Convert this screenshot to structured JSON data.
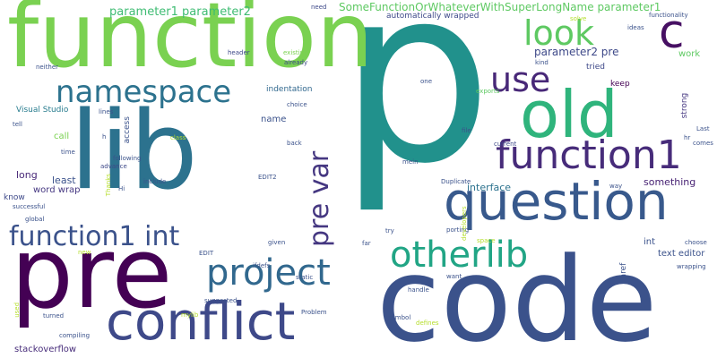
{
  "words": [
    {
      "text": "p",
      "weight": 1.0,
      "color": "#21918c",
      "orientation": "horizontal"
    },
    {
      "text": "code",
      "weight": 0.72,
      "color": "#3b528b",
      "orientation": "horizontal"
    },
    {
      "text": "function",
      "weight": 0.7,
      "color": "#7ad151",
      "orientation": "horizontal"
    },
    {
      "text": "lib",
      "weight": 0.68,
      "color": "#2c728e",
      "orientation": "horizontal"
    },
    {
      "text": "pre",
      "weight": 0.62,
      "color": "#440154",
      "orientation": "horizontal"
    },
    {
      "text": "old",
      "weight": 0.4,
      "color": "#2fb47c",
      "orientation": "horizontal"
    },
    {
      "text": "conflict",
      "weight": 0.32,
      "color": "#3e4989",
      "orientation": "horizontal"
    },
    {
      "text": "question",
      "weight": 0.32,
      "color": "#38598c",
      "orientation": "horizontal"
    },
    {
      "text": "c",
      "weight": 0.3,
      "color": "#471063",
      "orientation": "horizontal"
    },
    {
      "text": "function1",
      "weight": 0.24,
      "color": "#472c7a",
      "orientation": "horizontal"
    },
    {
      "text": "function1 int",
      "weight": 0.16,
      "color": "#3b528b",
      "orientation": "horizontal"
    },
    {
      "text": "project",
      "weight": 0.22,
      "color": "#31688e",
      "orientation": "horizontal"
    },
    {
      "text": "otherlib",
      "weight": 0.22,
      "color": "#21a585",
      "orientation": "horizontal"
    },
    {
      "text": "namespace",
      "weight": 0.18,
      "color": "#2c728e",
      "orientation": "horizontal"
    },
    {
      "text": "pre var",
      "weight": 0.16,
      "color": "#453781",
      "orientation": "vertical"
    },
    {
      "text": "use",
      "weight": 0.2,
      "color": "#482878",
      "orientation": "horizontal"
    },
    {
      "text": "look",
      "weight": 0.2,
      "color": "#5ec962",
      "orientation": "horizontal"
    },
    {
      "text": "parameter1 parameter2",
      "weight": 0.08,
      "color": "#3fbc73",
      "orientation": "horizontal"
    },
    {
      "text": "SomeFunctionOrWhateverWithSuperLongName parameter1",
      "weight": 0.08,
      "color": "#5ec962",
      "orientation": "horizontal"
    },
    {
      "text": "parameter2 pre",
      "weight": 0.08,
      "color": "#3e4989",
      "orientation": "horizontal"
    },
    {
      "text": "stackoverflow",
      "weight": 0.07,
      "color": "#472c7a",
      "orientation": "horizontal"
    },
    {
      "text": "something",
      "weight": 0.07,
      "color": "#482374",
      "orientation": "horizontal"
    },
    {
      "text": "long",
      "weight": 0.07,
      "color": "#482878",
      "orientation": "horizontal"
    },
    {
      "text": "least",
      "weight": 0.07,
      "color": "#3b528b",
      "orientation": "horizontal"
    },
    {
      "text": "interface",
      "weight": 0.06,
      "color": "#2c728e",
      "orientation": "horizontal"
    },
    {
      "text": "text editor",
      "weight": 0.06,
      "color": "#3b528b",
      "orientation": "horizontal"
    },
    {
      "text": "word wrap",
      "weight": 0.06,
      "color": "#453781",
      "orientation": "horizontal"
    },
    {
      "text": "automatically wrapped",
      "weight": 0.05,
      "color": "#3e4989",
      "orientation": "horizontal"
    },
    {
      "text": "indentation",
      "weight": 0.05,
      "color": "#31688e",
      "orientation": "horizontal"
    },
    {
      "text": "Visual Studio",
      "weight": 0.05,
      "color": "#287c8e",
      "orientation": "horizontal"
    },
    {
      "text": "call",
      "weight": 0.06,
      "color": "#7ad151",
      "orientation": "horizontal"
    },
    {
      "text": "name",
      "weight": 0.06,
      "color": "#3b528b",
      "orientation": "horizontal"
    },
    {
      "text": "work",
      "weight": 0.06,
      "color": "#5ec962",
      "orientation": "horizontal"
    },
    {
      "text": "tried",
      "weight": 0.06,
      "color": "#3e4989",
      "orientation": "horizontal"
    },
    {
      "text": "keep",
      "weight": 0.05,
      "color": "#440154",
      "orientation": "horizontal"
    },
    {
      "text": "strong",
      "weight": 0.05,
      "color": "#453781",
      "orientation": "vertical"
    },
    {
      "text": "access",
      "weight": 0.05,
      "color": "#3b528b",
      "orientation": "vertical"
    },
    {
      "text": "int",
      "weight": 0.06,
      "color": "#3b528b",
      "orientation": "horizontal"
    },
    {
      "text": "href",
      "weight": 0.05,
      "color": "#3b528b",
      "orientation": "vertical"
    },
    {
      "text": "need",
      "weight": 0.04,
      "color": "#3e4989",
      "orientation": "horizontal"
    },
    {
      "text": "header",
      "weight": 0.04,
      "color": "#3e4989",
      "orientation": "horizontal"
    },
    {
      "text": "already",
      "weight": 0.04,
      "color": "#3e4989",
      "orientation": "horizontal"
    },
    {
      "text": "existing",
      "weight": 0.04,
      "color": "#7ad151",
      "orientation": "horizontal"
    },
    {
      "text": "neither",
      "weight": 0.04,
      "color": "#3b528b",
      "orientation": "horizontal"
    },
    {
      "text": "one",
      "weight": 0.04,
      "color": "#3b528b",
      "orientation": "horizontal"
    },
    {
      "text": "exports",
      "weight": 0.04,
      "color": "#5ec962",
      "orientation": "horizontal"
    },
    {
      "text": "choice",
      "weight": 0.04,
      "color": "#3b528b",
      "orientation": "horizontal"
    },
    {
      "text": "file",
      "weight": 0.04,
      "color": "#3b528b",
      "orientation": "horizontal"
    },
    {
      "text": "current",
      "weight": 0.04,
      "color": "#3e4989",
      "orientation": "horizontal"
    },
    {
      "text": "mein",
      "weight": 0.04,
      "color": "#3b528b",
      "orientation": "horizontal"
    },
    {
      "text": "EDIT2",
      "weight": 0.04,
      "color": "#3b528b",
      "orientation": "horizontal"
    },
    {
      "text": "Duplicate",
      "weight": 0.04,
      "color": "#3b528b",
      "orientation": "horizontal"
    },
    {
      "text": "following",
      "weight": 0.04,
      "color": "#3b528b",
      "orientation": "horizontal"
    },
    {
      "text": "advance",
      "weight": 0.04,
      "color": "#3e4989",
      "orientation": "horizontal"
    },
    {
      "text": "Hi",
      "weight": 0.04,
      "color": "#3b528b",
      "orientation": "horizontal"
    },
    {
      "text": "include",
      "weight": 0.04,
      "color": "#3b528b",
      "orientation": "horizontal"
    },
    {
      "text": "Thanks",
      "weight": 0.04,
      "color": "#b5de2b",
      "orientation": "vertical"
    },
    {
      "text": "global",
      "weight": 0.04,
      "color": "#3b528b",
      "orientation": "horizontal"
    },
    {
      "text": "successful",
      "weight": 0.04,
      "color": "#3b528b",
      "orientation": "horizontal"
    },
    {
      "text": "know",
      "weight": 0.05,
      "color": "#3e4989",
      "orientation": "horizontal"
    },
    {
      "text": "tell",
      "weight": 0.04,
      "color": "#3b528b",
      "orientation": "horizontal"
    },
    {
      "text": "time",
      "weight": 0.04,
      "color": "#3b528b",
      "orientation": "horizontal"
    },
    {
      "text": "lines",
      "weight": 0.04,
      "color": "#3b528b",
      "orientation": "horizontal"
    },
    {
      "text": "h",
      "weight": 0.04,
      "color": "#3b528b",
      "orientation": "horizontal"
    },
    {
      "text": "class",
      "weight": 0.04,
      "color": "#b5de2b",
      "orientation": "horizontal"
    },
    {
      "text": "back",
      "weight": 0.04,
      "color": "#3b528b",
      "orientation": "horizontal"
    },
    {
      "text": "given",
      "weight": 0.04,
      "color": "#3b528b",
      "orientation": "horizontal"
    },
    {
      "text": "far",
      "weight": 0.04,
      "color": "#3b528b",
      "orientation": "horizontal"
    },
    {
      "text": "try",
      "weight": 0.04,
      "color": "#3b528b",
      "orientation": "horizontal"
    },
    {
      "text": "porting",
      "weight": 0.04,
      "color": "#3b528b",
      "orientation": "horizontal"
    },
    {
      "text": "developers",
      "weight": 0.04,
      "color": "#b5de2b",
      "orientation": "vertical"
    },
    {
      "text": "space",
      "weight": 0.04,
      "color": "#b5de2b",
      "orientation": "horizontal"
    },
    {
      "text": "want",
      "weight": 0.04,
      "color": "#3b528b",
      "orientation": "horizontal"
    },
    {
      "text": "handle",
      "weight": 0.04,
      "color": "#3b528b",
      "orientation": "horizontal"
    },
    {
      "text": "symbol",
      "weight": 0.04,
      "color": "#3b528b",
      "orientation": "horizontal"
    },
    {
      "text": "defines",
      "weight": 0.04,
      "color": "#b5de2b",
      "orientation": "horizontal"
    },
    {
      "text": "static",
      "weight": 0.04,
      "color": "#3b528b",
      "orientation": "horizontal"
    },
    {
      "text": "Problem",
      "weight": 0.04,
      "color": "#3b528b",
      "orientation": "horizontal"
    },
    {
      "text": "mylib",
      "weight": 0.04,
      "color": "#b5de2b",
      "orientation": "horizontal"
    },
    {
      "text": "ifdefs",
      "weight": 0.04,
      "color": "#3b528b",
      "orientation": "horizontal"
    },
    {
      "text": "suggested",
      "weight": 0.04,
      "color": "#3b528b",
      "orientation": "horizontal"
    },
    {
      "text": "EDIT",
      "weight": 0.04,
      "color": "#3b528b",
      "orientation": "horizontal"
    },
    {
      "text": "new",
      "weight": 0.04,
      "color": "#b5de2b",
      "orientation": "horizontal"
    },
    {
      "text": "used",
      "weight": 0.04,
      "color": "#b5de2b",
      "orientation": "vertical"
    },
    {
      "text": "turned",
      "weight": 0.04,
      "color": "#3b528b",
      "orientation": "horizontal"
    },
    {
      "text": "compiling",
      "weight": 0.04,
      "color": "#3b528b",
      "orientation": "horizontal"
    },
    {
      "text": "solve",
      "weight": 0.04,
      "color": "#b5de2b",
      "orientation": "horizontal"
    },
    {
      "text": "ideas",
      "weight": 0.04,
      "color": "#3b528b",
      "orientation": "horizontal"
    },
    {
      "text": "functionality",
      "weight": 0.04,
      "color": "#3b528b",
      "orientation": "horizontal"
    },
    {
      "text": "kind",
      "weight": 0.04,
      "color": "#3b528b",
      "orientation": "horizontal"
    },
    {
      "text": "Last",
      "weight": 0.04,
      "color": "#3b528b",
      "orientation": "horizontal"
    },
    {
      "text": "hr",
      "weight": 0.04,
      "color": "#3b528b",
      "orientation": "horizontal"
    },
    {
      "text": "comes",
      "weight": 0.04,
      "color": "#3b528b",
      "orientation": "horizontal"
    },
    {
      "text": "way",
      "weight": 0.04,
      "color": "#3b528b",
      "orientation": "horizontal"
    },
    {
      "text": "choose",
      "weight": 0.04,
      "color": "#3b528b",
      "orientation": "horizontal"
    },
    {
      "text": "wrapping",
      "weight": 0.04,
      "color": "#3b528b",
      "orientation": "horizontal"
    }
  ]
}
